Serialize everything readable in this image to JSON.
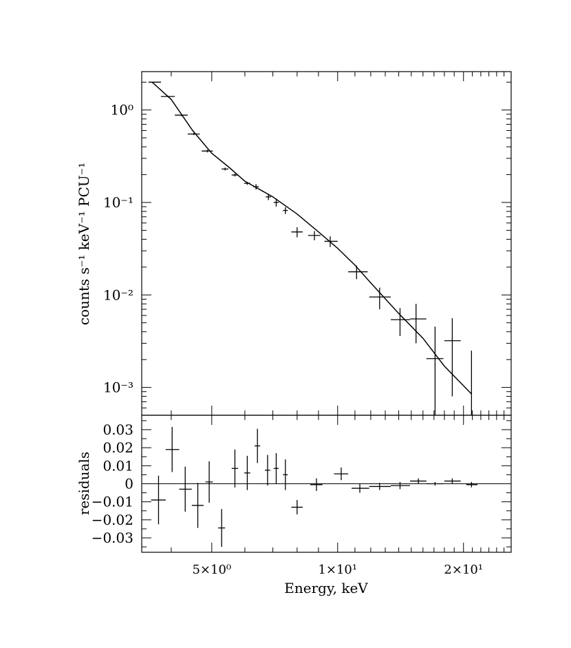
{
  "chart_data": [
    {
      "type": "scatter",
      "panel": "spectrum",
      "xscale": "log",
      "yscale": "log",
      "xlim": [
        3.4,
        26
      ],
      "ylim": [
        0.0005,
        2.6
      ],
      "ylabel": "counts s⁻¹ keV⁻¹ PCU⁻¹",
      "yticks": [
        {
          "value": 1,
          "label": "10⁰"
        },
        {
          "value": 0.1,
          "label": "10⁻¹"
        },
        {
          "value": 0.01,
          "label": "10⁻²"
        },
        {
          "value": 0.001,
          "label": "10⁻³"
        }
      ],
      "points": [
        {
          "x": 3.63,
          "x_lo": 3.53,
          "x_hi": 3.78,
          "y": 2.0,
          "y_err": 0.02
        },
        {
          "x": 3.93,
          "x_lo": 3.78,
          "x_hi": 4.08,
          "y": 1.4,
          "y_err": 0.02
        },
        {
          "x": 4.23,
          "x_lo": 4.08,
          "x_hi": 4.38,
          "y": 0.88,
          "y_err": 0.02
        },
        {
          "x": 4.53,
          "x_lo": 4.38,
          "x_hi": 4.68,
          "y": 0.55,
          "y_err": 0.015
        },
        {
          "x": 4.88,
          "x_lo": 4.73,
          "x_hi": 5.03,
          "y": 0.36,
          "y_err": 0.012
        },
        {
          "x": 5.38,
          "x_lo": 5.28,
          "x_hi": 5.48,
          "y": 0.23,
          "y_err": 0.008
        },
        {
          "x": 5.68,
          "x_lo": 5.58,
          "x_hi": 5.78,
          "y": 0.198,
          "y_err": 0.007
        },
        {
          "x": 6.08,
          "x_lo": 5.98,
          "x_hi": 6.18,
          "y": 0.161,
          "y_err": 0.006
        },
        {
          "x": 6.38,
          "x_lo": 6.28,
          "x_hi": 6.48,
          "y": 0.148,
          "y_err": 0.01
        },
        {
          "x": 6.83,
          "x_lo": 6.73,
          "x_hi": 6.93,
          "y": 0.115,
          "y_err": 0.009
        },
        {
          "x": 7.13,
          "x_lo": 7.03,
          "x_hi": 7.23,
          "y": 0.1,
          "y_err": 0.01
        },
        {
          "x": 7.5,
          "x_lo": 7.4,
          "x_hi": 7.6,
          "y": 0.082,
          "y_err": 0.007
        },
        {
          "x": 8.0,
          "x_lo": 7.75,
          "x_hi": 8.25,
          "y": 0.048,
          "y_err": 0.006
        },
        {
          "x": 8.8,
          "x_lo": 8.5,
          "x_hi": 9.1,
          "y": 0.044,
          "y_err": 0.005
        },
        {
          "x": 9.6,
          "x_lo": 9.3,
          "x_hi": 10.0,
          "y": 0.038,
          "y_err": 0.005
        },
        {
          "x": 11.1,
          "x_lo": 10.6,
          "x_hi": 11.8,
          "y": 0.0178,
          "y_err": 0.003
        },
        {
          "x": 12.6,
          "x_lo": 11.9,
          "x_hi": 13.4,
          "y": 0.0095,
          "y_err": 0.0025
        },
        {
          "x": 14.1,
          "x_lo": 13.4,
          "x_hi": 14.9,
          "y": 0.0054,
          "y_err": 0.0018
        },
        {
          "x": 15.4,
          "x_lo": 14.9,
          "x_hi": 16.3,
          "y": 0.0055,
          "y_err": 0.0025
        },
        {
          "x": 17.1,
          "x_lo": 16.3,
          "x_hi": 17.9,
          "y": 0.00205,
          "y_err": 0.0025
        },
        {
          "x": 18.8,
          "x_lo": 18.0,
          "x_hi": 19.7,
          "y": 0.0032,
          "y_err": 0.0024
        },
        {
          "x": 20.9,
          "x_lo": 20.9,
          "x_hi": 20.9,
          "y": 0.0009,
          "y_err": 0.0016
        }
      ],
      "model": {
        "x": [
          3.6,
          4.0,
          4.5,
          5.0,
          5.5,
          6.0,
          7.0,
          8.0,
          9.0,
          10.0,
          11.0,
          12.0,
          14.0,
          16.0,
          18.0,
          20.9
        ],
        "y": [
          2.0,
          1.3,
          0.6,
          0.34,
          0.24,
          0.17,
          0.115,
          0.075,
          0.048,
          0.032,
          0.021,
          0.0135,
          0.0063,
          0.0034,
          0.0017,
          0.00085
        ]
      }
    },
    {
      "type": "scatter",
      "panel": "residuals",
      "xscale": "log",
      "xlim": [
        3.4,
        26
      ],
      "ylim": [
        -0.038,
        0.038
      ],
      "xlabel": "Energy, keV",
      "ylabel": "residuals",
      "xticks": [
        {
          "value": 5,
          "label": "5×10⁰"
        },
        {
          "value": 10,
          "label": "1×10¹"
        },
        {
          "value": 20,
          "label": "2×10¹"
        }
      ],
      "yticks": [
        {
          "value": 0.03,
          "label": "0.03"
        },
        {
          "value": 0.02,
          "label": "0.02"
        },
        {
          "value": 0.01,
          "label": "0.01"
        },
        {
          "value": 0,
          "label": "0"
        },
        {
          "value": -0.01,
          "label": "−0.01"
        },
        {
          "value": -0.02,
          "label": "−0.02"
        },
        {
          "value": -0.03,
          "label": "−0.03"
        }
      ],
      "zero_line": 0,
      "points": [
        {
          "x": 3.73,
          "x_lo": 3.58,
          "x_hi": 3.88,
          "y": -0.009,
          "y_err": 0.0135
        },
        {
          "x": 4.02,
          "x_lo": 3.88,
          "x_hi": 4.18,
          "y": 0.019,
          "y_err": 0.0125
        },
        {
          "x": 4.32,
          "x_lo": 4.18,
          "x_hi": 4.48,
          "y": -0.003,
          "y_err": 0.0125
        },
        {
          "x": 4.63,
          "x_lo": 4.48,
          "x_hi": 4.78,
          "y": -0.012,
          "y_err": 0.0125
        },
        {
          "x": 4.93,
          "x_lo": 4.83,
          "x_hi": 5.03,
          "y": 0.001,
          "y_err": 0.0115
        },
        {
          "x": 5.28,
          "x_lo": 5.18,
          "x_hi": 5.38,
          "y": -0.0245,
          "y_err": 0.0105
        },
        {
          "x": 5.68,
          "x_lo": 5.58,
          "x_hi": 5.78,
          "y": 0.0085,
          "y_err": 0.0105
        },
        {
          "x": 6.08,
          "x_lo": 5.98,
          "x_hi": 6.18,
          "y": 0.006,
          "y_err": 0.0095
        },
        {
          "x": 6.43,
          "x_lo": 6.33,
          "x_hi": 6.53,
          "y": 0.021,
          "y_err": 0.0095
        },
        {
          "x": 6.8,
          "x_lo": 6.7,
          "x_hi": 6.9,
          "y": 0.0075,
          "y_err": 0.0085
        },
        {
          "x": 7.13,
          "x_lo": 7.03,
          "x_hi": 7.23,
          "y": 0.0085,
          "y_err": 0.0085
        },
        {
          "x": 7.5,
          "x_lo": 7.4,
          "x_hi": 7.6,
          "y": 0.005,
          "y_err": 0.0085
        },
        {
          "x": 8.0,
          "x_lo": 7.75,
          "x_hi": 8.25,
          "y": -0.013,
          "y_err": 0.004
        },
        {
          "x": 8.9,
          "x_lo": 8.6,
          "x_hi": 9.2,
          "y": -0.0005,
          "y_err": 0.0035
        },
        {
          "x": 10.2,
          "x_lo": 9.8,
          "x_hi": 10.6,
          "y": 0.0055,
          "y_err": 0.0035
        },
        {
          "x": 11.3,
          "x_lo": 10.8,
          "x_hi": 11.9,
          "y": -0.0025,
          "y_err": 0.0025
        },
        {
          "x": 12.6,
          "x_lo": 11.9,
          "x_hi": 13.4,
          "y": -0.0015,
          "y_err": 0.002
        },
        {
          "x": 14.1,
          "x_lo": 13.4,
          "x_hi": 14.9,
          "y": -0.001,
          "y_err": 0.002
        },
        {
          "x": 15.6,
          "x_lo": 14.9,
          "x_hi": 16.3,
          "y": 0.0015,
          "y_err": 0.0015
        },
        {
          "x": 17.1,
          "x_lo": 16.3,
          "x_hi": 17.9,
          "y": 0.0,
          "y_err": 0.001
        },
        {
          "x": 18.8,
          "x_lo": 18.0,
          "x_hi": 19.7,
          "y": 0.0015,
          "y_err": 0.0015
        },
        {
          "x": 20.9,
          "x_lo": 20.3,
          "x_hi": 21.6,
          "y": -0.0005,
          "y_err": 0.0015
        }
      ]
    }
  ]
}
